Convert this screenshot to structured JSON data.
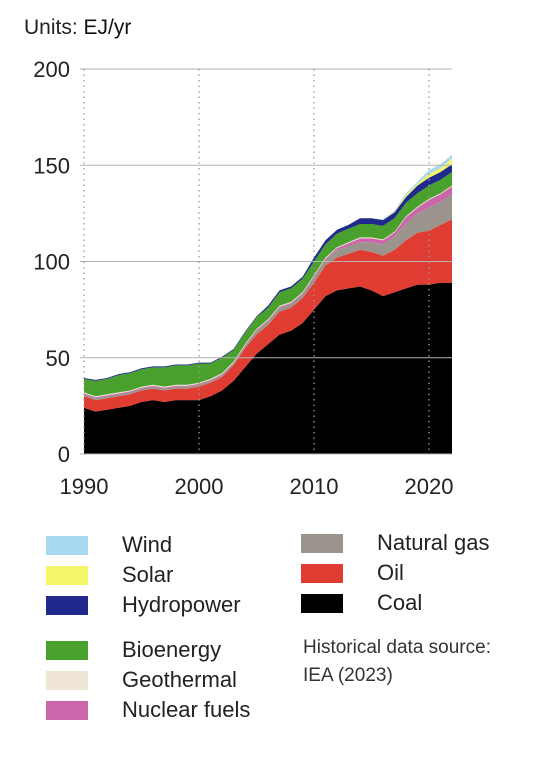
{
  "units_label": "Units:",
  "units_value": "EJ/yr",
  "source": {
    "line1": "Historical data source:",
    "line2": "IEA (2023)"
  },
  "colors": {
    "Wind": "#a8d8f0",
    "Solar": "#f5f56a",
    "Hydropower": "#1f2a8c",
    "Bioenergy": "#4aa02c",
    "Geothermal": "#efe6d6",
    "Nuclear fuels": "#cc66aa",
    "Natural gas": "#9a948c",
    "Oil": "#e03c31",
    "Coal": "#000000"
  },
  "legend": {
    "left": [
      "Wind",
      "Solar",
      "Hydropower",
      "Bioenergy",
      "Geothermal",
      "Nuclear fuels"
    ],
    "right": [
      "Natural gas",
      "Oil",
      "Coal"
    ]
  },
  "chart_data": {
    "type": "area",
    "stacked": true,
    "title": "",
    "xlabel": "",
    "ylabel": "",
    "xlim": [
      1990,
      2022
    ],
    "ylim": [
      0,
      200
    ],
    "x_ticks": [
      1990,
      2000,
      2010,
      2020
    ],
    "y_ticks": [
      0,
      50,
      100,
      150,
      200
    ],
    "grid": "horizontal solid lines, vertical dotted lines at decades",
    "x": [
      1990,
      1991,
      1992,
      1993,
      1994,
      1995,
      1996,
      1997,
      1998,
      1999,
      2000,
      2001,
      2002,
      2003,
      2004,
      2005,
      2006,
      2007,
      2008,
      2009,
      2010,
      2011,
      2012,
      2013,
      2014,
      2015,
      2016,
      2017,
      2018,
      2019,
      2020,
      2021,
      2022
    ],
    "series": [
      {
        "name": "Coal",
        "values": [
          24,
          22,
          23,
          24,
          25,
          27,
          28,
          27,
          28,
          28,
          28,
          30,
          33,
          38,
          45,
          52,
          57,
          62,
          64,
          68,
          75,
          82,
          85,
          86,
          87,
          85,
          82,
          84,
          86,
          88,
          88,
          89,
          89
        ]
      },
      {
        "name": "Oil",
        "values": [
          6,
          6,
          6,
          6,
          6,
          6,
          6,
          6,
          6,
          6,
          7,
          7,
          7,
          8,
          10,
          10,
          10,
          12,
          12,
          13,
          14,
          16,
          17,
          18,
          19,
          20,
          21,
          22,
          25,
          27,
          28,
          30,
          33
        ]
      },
      {
        "name": "Natural gas",
        "values": [
          1,
          1,
          1,
          1,
          1,
          1,
          1,
          1,
          1,
          1,
          1,
          1,
          1,
          1,
          1,
          2,
          2,
          2,
          2,
          2,
          3,
          3,
          4,
          4,
          4,
          5,
          6,
          7,
          9,
          10,
          12,
          12,
          13
        ]
      },
      {
        "name": "Nuclear fuels",
        "values": [
          0.5,
          0.5,
          0.5,
          0.5,
          0.5,
          0.5,
          0.5,
          0.5,
          0.5,
          0.5,
          0.5,
          0.5,
          0.5,
          0.5,
          0.5,
          0.5,
          0.5,
          0.5,
          0.5,
          0.5,
          0.5,
          0.5,
          1,
          1.5,
          2,
          2,
          2,
          2,
          3,
          3,
          4,
          4,
          4
        ]
      },
      {
        "name": "Geothermal",
        "values": [
          0.5,
          0.5,
          0.5,
          0.5,
          0.5,
          0.5,
          0.5,
          0.5,
          0.5,
          0.5,
          0.5,
          0.5,
          0.5,
          0.5,
          0.5,
          0.5,
          0.5,
          0.5,
          0.5,
          0.5,
          0.5,
          0.5,
          0.5,
          0.5,
          0.5,
          0.5,
          0.5,
          0.5,
          0.5,
          0.5,
          0.5,
          0.5,
          0.5
        ]
      },
      {
        "name": "Bioenergy",
        "values": [
          7,
          8,
          8,
          9,
          9,
          9,
          9,
          10,
          10,
          10,
          10,
          8,
          8,
          6,
          6,
          6,
          6,
          7,
          7,
          7,
          7,
          7,
          7,
          7,
          7,
          7,
          7,
          7,
          7,
          7,
          7,
          7,
          7
        ]
      },
      {
        "name": "Hydropower",
        "values": [
          0.5,
          0.5,
          0.5,
          0.5,
          0.5,
          0.5,
          0.5,
          0.5,
          0.5,
          0.5,
          0.5,
          0.5,
          0.5,
          0.5,
          0.5,
          0.5,
          1,
          1,
          1,
          1,
          2,
          2,
          2,
          2,
          3,
          3,
          3,
          3,
          3,
          4,
          4,
          4,
          4
        ]
      },
      {
        "name": "Solar",
        "values": [
          0,
          0,
          0,
          0,
          0,
          0,
          0,
          0,
          0,
          0,
          0,
          0,
          0,
          0,
          0,
          0,
          0,
          0,
          0,
          0,
          0,
          0,
          0,
          0,
          0,
          0,
          0,
          0.5,
          1,
          1,
          2,
          2,
          3
        ]
      },
      {
        "name": "Wind",
        "values": [
          0,
          0,
          0,
          0,
          0,
          0,
          0,
          0,
          0,
          0,
          0,
          0,
          0,
          0,
          0,
          0,
          0,
          0,
          0,
          0,
          0,
          0,
          0,
          0,
          0,
          0,
          0.5,
          0.5,
          1,
          1,
          2,
          2,
          2
        ]
      }
    ]
  }
}
